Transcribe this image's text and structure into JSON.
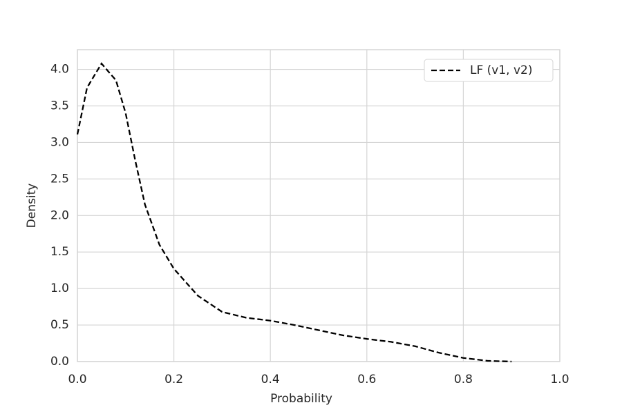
{
  "chart_data": {
    "type": "line",
    "xlabel": "Probability",
    "ylabel": "Density",
    "x": [
      0,
      0.02,
      0.05,
      0.08,
      0.1,
      0.12,
      0.14,
      0.17,
      0.2,
      0.25,
      0.3,
      0.35,
      0.4,
      0.45,
      0.5,
      0.55,
      0.6,
      0.65,
      0.7,
      0.75,
      0.8,
      0.85,
      0.9
    ],
    "series": [
      {
        "name": "LF (v1, v2)",
        "color": "#000000",
        "dashed": true,
        "values": [
          3.11,
          3.75,
          4.08,
          3.85,
          3.4,
          2.75,
          2.15,
          1.6,
          1.27,
          0.9,
          0.68,
          0.6,
          0.56,
          0.5,
          0.43,
          0.36,
          0.31,
          0.27,
          0.21,
          0.12,
          0.05,
          0.01,
          0.0
        ]
      }
    ],
    "xlim": [
      0,
      1
    ],
    "ylim": [
      0,
      4.27
    ],
    "xticks": [
      {
        "value": 0,
        "label": "0.0"
      },
      0.2,
      0.4,
      0.6,
      0.8,
      {
        "value": 1,
        "label": "1.0"
      }
    ],
    "yticks": [
      {
        "value": 0,
        "label": "0.0"
      },
      0.5,
      {
        "value": 1,
        "label": "1.0"
      },
      1.5,
      {
        "value": 2,
        "label": "2.0"
      },
      2.5,
      {
        "value": 3,
        "label": "3.0"
      },
      3.5,
      {
        "value": 4,
        "label": "4.0"
      }
    ],
    "grid": true,
    "legend": "upper right"
  }
}
